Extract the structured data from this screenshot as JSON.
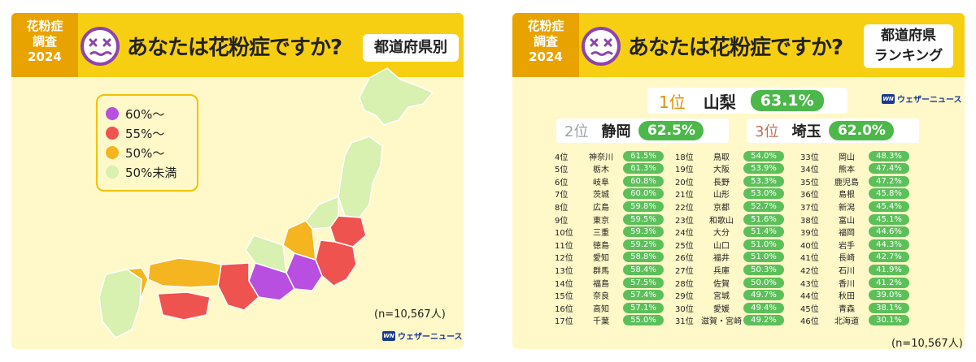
{
  "left": {
    "year_box": [
      "花粉症",
      "調査",
      "2024"
    ],
    "title": "あなたは花粉症ですか?",
    "tag": "都道府県別",
    "legend": [
      {
        "label": "60%〜",
        "color": "#b84fe0"
      },
      {
        "label": "55%〜",
        "color": "#ef5350"
      },
      {
        "label": "50%〜",
        "color": "#f5b521"
      },
      {
        "label": "50%未満",
        "color": "#d8f0b0"
      }
    ],
    "sample_note": "(n=10,567人)",
    "logo_mark": "WN",
    "logo_text": "ウェザーニュース"
  },
  "right": {
    "year_box": [
      "花粉症",
      "調査",
      "2024"
    ],
    "title": "あなたは花粉症ですか?",
    "tag_lines": [
      "都道府県",
      "ランキング"
    ],
    "logo_mark": "WN",
    "logo_text": "ウェザーニュース",
    "top": [
      {
        "rank": "1位",
        "name": "山梨",
        "pct": "63.1%"
      },
      {
        "rank": "2位",
        "name": "静岡",
        "pct": "62.5%"
      },
      {
        "rank": "3位",
        "name": "埼玉",
        "pct": "62.0%"
      }
    ],
    "columns": [
      [
        {
          "rank": "4位",
          "name": "神奈川",
          "pct": "61.5%"
        },
        {
          "rank": "5位",
          "name": "栃木",
          "pct": "61.3%"
        },
        {
          "rank": "6位",
          "name": "岐阜",
          "pct": "60.8%"
        },
        {
          "rank": "7位",
          "name": "茨城",
          "pct": "60.0%"
        },
        {
          "rank": "8位",
          "name": "広島",
          "pct": "59.8%"
        },
        {
          "rank": "9位",
          "name": "東京",
          "pct": "59.5%"
        },
        {
          "rank": "10位",
          "name": "三重",
          "pct": "59.3%"
        },
        {
          "rank": "11位",
          "name": "徳島",
          "pct": "59.2%"
        },
        {
          "rank": "12位",
          "name": "愛知",
          "pct": "58.8%"
        },
        {
          "rank": "13位",
          "name": "群馬",
          "pct": "58.4%"
        },
        {
          "rank": "14位",
          "name": "福島",
          "pct": "57.5%"
        },
        {
          "rank": "15位",
          "name": "奈良",
          "pct": "57.4%"
        },
        {
          "rank": "16位",
          "name": "高知",
          "pct": "57.1%"
        },
        {
          "rank": "17位",
          "name": "千葉",
          "pct": "55.0%"
        }
      ],
      [
        {
          "rank": "18位",
          "name": "鳥取",
          "pct": "54.0%"
        },
        {
          "rank": "19位",
          "name": "大阪",
          "pct": "53.9%"
        },
        {
          "rank": "20位",
          "name": "長野",
          "pct": "53.3%"
        },
        {
          "rank": "21位",
          "name": "山形",
          "pct": "53.0%"
        },
        {
          "rank": "22位",
          "name": "京都",
          "pct": "52.7%"
        },
        {
          "rank": "23位",
          "name": "和歌山",
          "pct": "51.6%"
        },
        {
          "rank": "24位",
          "name": "大分",
          "pct": "51.4%"
        },
        {
          "rank": "25位",
          "name": "山口",
          "pct": "51.0%"
        },
        {
          "rank": "26位",
          "name": "福井",
          "pct": "51.0%"
        },
        {
          "rank": "27位",
          "name": "兵庫",
          "pct": "50.3%"
        },
        {
          "rank": "28位",
          "name": "佐賀",
          "pct": "50.0%"
        },
        {
          "rank": "29位",
          "name": "宮城",
          "pct": "49.7%"
        },
        {
          "rank": "30位",
          "name": "愛媛",
          "pct": "49.4%"
        },
        {
          "rank": "31位",
          "name": "滋賀・宮崎",
          "pct": "49.2%"
        }
      ],
      [
        {
          "rank": "33位",
          "name": "岡山",
          "pct": "48.3%"
        },
        {
          "rank": "34位",
          "name": "熊本",
          "pct": "47.4%"
        },
        {
          "rank": "35位",
          "name": "鹿児島",
          "pct": "47.2%"
        },
        {
          "rank": "36位",
          "name": "島根",
          "pct": "45.8%"
        },
        {
          "rank": "37位",
          "name": "新潟",
          "pct": "45.4%"
        },
        {
          "rank": "38位",
          "name": "富山",
          "pct": "45.1%"
        },
        {
          "rank": "39位",
          "name": "福岡",
          "pct": "44.6%"
        },
        {
          "rank": "40位",
          "name": "岩手",
          "pct": "44.3%"
        },
        {
          "rank": "41位",
          "name": "長崎",
          "pct": "42.7%"
        },
        {
          "rank": "42位",
          "name": "石川",
          "pct": "41.9%"
        },
        {
          "rank": "43位",
          "name": "香川",
          "pct": "41.2%"
        },
        {
          "rank": "44位",
          "name": "秋田",
          "pct": "39.0%"
        },
        {
          "rank": "45位",
          "name": "青森",
          "pct": "38.1%"
        },
        {
          "rank": "46位",
          "name": "北海道",
          "pct": "30.1%"
        }
      ]
    ],
    "sample_note": "(n=10,567人)"
  },
  "colors": {
    "header": "#f7cf12",
    "year_box": "#e8a300",
    "panel_bg": "#fff8c8",
    "pct_pill": "#4cb84a",
    "rank_gold": "#e09000",
    "rank_silver": "#9aa0a6",
    "rank_bronze": "#b8745a",
    "face": "#8e44ad"
  }
}
